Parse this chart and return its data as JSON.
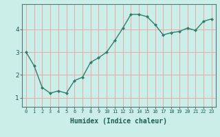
{
  "x": [
    0,
    1,
    2,
    3,
    4,
    5,
    6,
    7,
    8,
    9,
    10,
    11,
    12,
    13,
    14,
    15,
    16,
    17,
    18,
    19,
    20,
    21,
    22,
    23
  ],
  "y": [
    3.0,
    2.4,
    1.45,
    1.2,
    1.3,
    1.2,
    1.75,
    1.9,
    2.55,
    2.75,
    3.0,
    3.5,
    4.05,
    4.65,
    4.65,
    4.55,
    4.2,
    3.75,
    3.85,
    3.9,
    4.05,
    3.95,
    4.35,
    4.45
  ],
  "line_color": "#2e7d6e",
  "marker": "D",
  "marker_size": 2,
  "line_width": 1.0,
  "bg_color": "#cceee8",
  "grid_color": "#e8a8a8",
  "xlabel": "Humidex (Indice chaleur)",
  "xlabel_fontsize": 7,
  "yticks": [
    1,
    2,
    3,
    4
  ],
  "ylim": [
    0.6,
    5.1
  ],
  "xlim": [
    -0.5,
    23.5
  ]
}
